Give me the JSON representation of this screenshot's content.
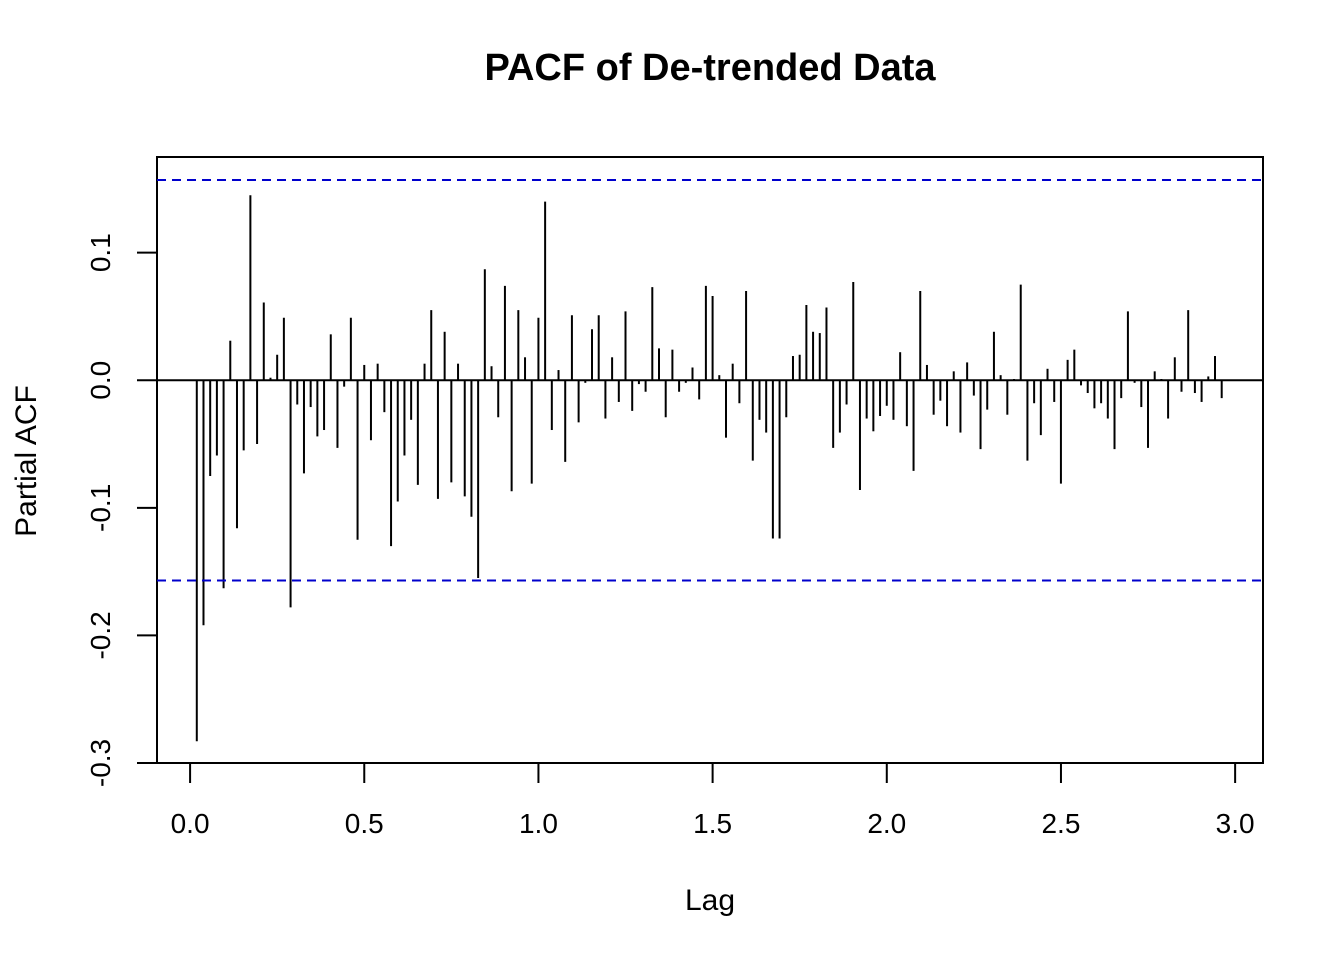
{
  "chart_data": {
    "type": "bar",
    "title": "PACF of De-trended Data",
    "xlabel": "Lag",
    "ylabel": "Partial ACF",
    "xlim": [
      -0.095,
      3.08
    ],
    "ylim": [
      -0.3,
      0.175
    ],
    "x_ticks": [
      0.0,
      0.5,
      1.0,
      1.5,
      2.0,
      2.5,
      3.0
    ],
    "x_tick_labels": [
      "0.0",
      "0.5",
      "1.0",
      "1.5",
      "2.0",
      "2.5",
      "3.0"
    ],
    "y_ticks": [
      -0.3,
      -0.2,
      -0.1,
      0.0,
      0.1
    ],
    "y_tick_labels": [
      "-0.3",
      "-0.2",
      "-0.1",
      "0.0",
      "0.1"
    ],
    "confidence_bound": 0.157,
    "confidence_color": "#0000cc",
    "bar_color": "#000000",
    "lag_start": 0.01923,
    "lag_step": 0.01923,
    "values": [
      -0.283,
      -0.192,
      -0.075,
      -0.059,
      -0.163,
      0.031,
      -0.116,
      -0.055,
      0.145,
      -0.05,
      0.061,
      0.002,
      0.02,
      0.049,
      -0.178,
      -0.019,
      -0.073,
      -0.021,
      -0.044,
      -0.039,
      0.036,
      -0.053,
      -0.005,
      0.049,
      -0.125,
      0.012,
      -0.047,
      0.013,
      -0.025,
      -0.13,
      -0.095,
      -0.059,
      -0.031,
      -0.082,
      0.013,
      0.055,
      -0.093,
      0.038,
      -0.08,
      0.013,
      -0.091,
      -0.107,
      -0.155,
      0.087,
      0.011,
      -0.029,
      0.074,
      -0.087,
      0.055,
      0.018,
      -0.081,
      0.049,
      0.14,
      -0.039,
      0.008,
      -0.064,
      0.051,
      -0.033,
      -0.002,
      0.04,
      0.051,
      -0.03,
      0.018,
      -0.017,
      0.054,
      -0.024,
      -0.003,
      -0.009,
      0.073,
      0.025,
      -0.029,
      0.024,
      -0.009,
      -0.002,
      0.01,
      -0.015,
      0.074,
      0.066,
      0.004,
      -0.045,
      0.013,
      -0.018,
      0.07,
      -0.063,
      -0.031,
      -0.041,
      -0.124,
      -0.124,
      -0.029,
      0.019,
      0.02,
      0.059,
      0.038,
      0.037,
      0.057,
      -0.053,
      -0.041,
      -0.019,
      0.077,
      -0.086,
      -0.03,
      -0.04,
      -0.028,
      -0.02,
      -0.031,
      0.022,
      -0.036,
      -0.071,
      0.07,
      0.012,
      -0.027,
      -0.016,
      -0.036,
      0.007,
      -0.041,
      0.014,
      -0.012,
      -0.054,
      -0.023,
      0.038,
      0.004,
      -0.027,
      0.001,
      0.075,
      -0.063,
      -0.018,
      -0.043,
      0.009,
      -0.017,
      -0.081,
      0.016,
      0.024,
      -0.004,
      -0.01,
      -0.022,
      -0.018,
      -0.03,
      -0.054,
      -0.014,
      0.054,
      -0.002,
      -0.021,
      -0.053,
      0.007,
      0.001,
      -0.03,
      0.018,
      -0.009,
      0.055,
      -0.01,
      -0.017,
      0.003,
      0.019,
      -0.014
    ]
  }
}
